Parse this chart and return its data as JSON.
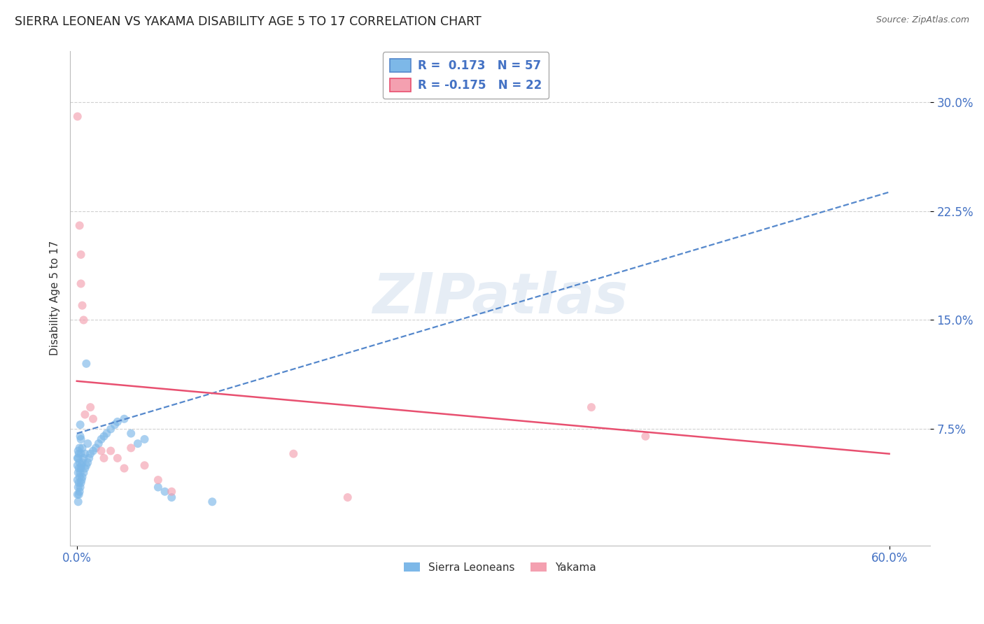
{
  "title": "SIERRA LEONEAN VS YAKAMA DISABILITY AGE 5 TO 17 CORRELATION CHART",
  "source": "Source: ZipAtlas.com",
  "ylabel": "Disability Age 5 to 17",
  "xlim": [
    -0.005,
    0.63
  ],
  "ylim": [
    -0.005,
    0.335
  ],
  "watermark_text": "ZIPatlas",
  "blue_points": [
    [
      0.0005,
      0.03
    ],
    [
      0.0005,
      0.04
    ],
    [
      0.0005,
      0.05
    ],
    [
      0.0005,
      0.055
    ],
    [
      0.001,
      0.025
    ],
    [
      0.001,
      0.035
    ],
    [
      0.001,
      0.045
    ],
    [
      0.001,
      0.055
    ],
    [
      0.001,
      0.06
    ],
    [
      0.0015,
      0.03
    ],
    [
      0.0015,
      0.038
    ],
    [
      0.0015,
      0.048
    ],
    [
      0.0015,
      0.058
    ],
    [
      0.002,
      0.032
    ],
    [
      0.002,
      0.042
    ],
    [
      0.002,
      0.052
    ],
    [
      0.002,
      0.062
    ],
    [
      0.0025,
      0.035
    ],
    [
      0.0025,
      0.045
    ],
    [
      0.0025,
      0.07
    ],
    [
      0.0025,
      0.078
    ],
    [
      0.003,
      0.038
    ],
    [
      0.003,
      0.048
    ],
    [
      0.003,
      0.058
    ],
    [
      0.003,
      0.068
    ],
    [
      0.0035,
      0.04
    ],
    [
      0.0035,
      0.05
    ],
    [
      0.004,
      0.042
    ],
    [
      0.004,
      0.052
    ],
    [
      0.004,
      0.062
    ],
    [
      0.005,
      0.045
    ],
    [
      0.005,
      0.055
    ],
    [
      0.006,
      0.048
    ],
    [
      0.006,
      0.058
    ],
    [
      0.007,
      0.05
    ],
    [
      0.007,
      0.12
    ],
    [
      0.008,
      0.052
    ],
    [
      0.008,
      0.065
    ],
    [
      0.009,
      0.055
    ],
    [
      0.01,
      0.058
    ],
    [
      0.012,
      0.06
    ],
    [
      0.014,
      0.062
    ],
    [
      0.016,
      0.065
    ],
    [
      0.018,
      0.068
    ],
    [
      0.02,
      0.07
    ],
    [
      0.022,
      0.072
    ],
    [
      0.025,
      0.075
    ],
    [
      0.028,
      0.078
    ],
    [
      0.03,
      0.08
    ],
    [
      0.035,
      0.082
    ],
    [
      0.04,
      0.072
    ],
    [
      0.045,
      0.065
    ],
    [
      0.05,
      0.068
    ],
    [
      0.06,
      0.035
    ],
    [
      0.065,
      0.032
    ],
    [
      0.07,
      0.028
    ],
    [
      0.1,
      0.025
    ]
  ],
  "pink_points": [
    [
      0.0005,
      0.29
    ],
    [
      0.002,
      0.215
    ],
    [
      0.003,
      0.195
    ],
    [
      0.003,
      0.175
    ],
    [
      0.004,
      0.16
    ],
    [
      0.005,
      0.15
    ],
    [
      0.006,
      0.085
    ],
    [
      0.01,
      0.09
    ],
    [
      0.012,
      0.082
    ],
    [
      0.018,
      0.06
    ],
    [
      0.02,
      0.055
    ],
    [
      0.025,
      0.06
    ],
    [
      0.03,
      0.055
    ],
    [
      0.035,
      0.048
    ],
    [
      0.04,
      0.062
    ],
    [
      0.05,
      0.05
    ],
    [
      0.06,
      0.04
    ],
    [
      0.07,
      0.032
    ],
    [
      0.16,
      0.058
    ],
    [
      0.2,
      0.028
    ],
    [
      0.38,
      0.09
    ],
    [
      0.42,
      0.07
    ]
  ],
  "blue_trendline_x": [
    0.0,
    0.6
  ],
  "blue_trendline_y": [
    0.072,
    0.238
  ],
  "pink_trendline_x": [
    0.0,
    0.6
  ],
  "pink_trendline_y": [
    0.108,
    0.058
  ],
  "background_color": "#ffffff",
  "grid_color": "#d0d0d0",
  "blue_color": "#7db8e8",
  "pink_color": "#f4a0b0",
  "blue_line_color": "#5588cc",
  "pink_line_color": "#e85070",
  "dot_alpha": 0.65,
  "dot_size": 75,
  "legend_R1": "R =  0.173",
  "legend_N1": "N = 57",
  "legend_R2": "R = -0.175",
  "legend_N2": "N = 22",
  "ytick_vals": [
    0.075,
    0.15,
    0.225,
    0.3
  ],
  "ytick_labels": [
    "7.5%",
    "15.0%",
    "22.5%",
    "30.0%"
  ],
  "xtick_vals": [
    0.0,
    0.6
  ],
  "xtick_labels": [
    "0.0%",
    "60.0%"
  ]
}
